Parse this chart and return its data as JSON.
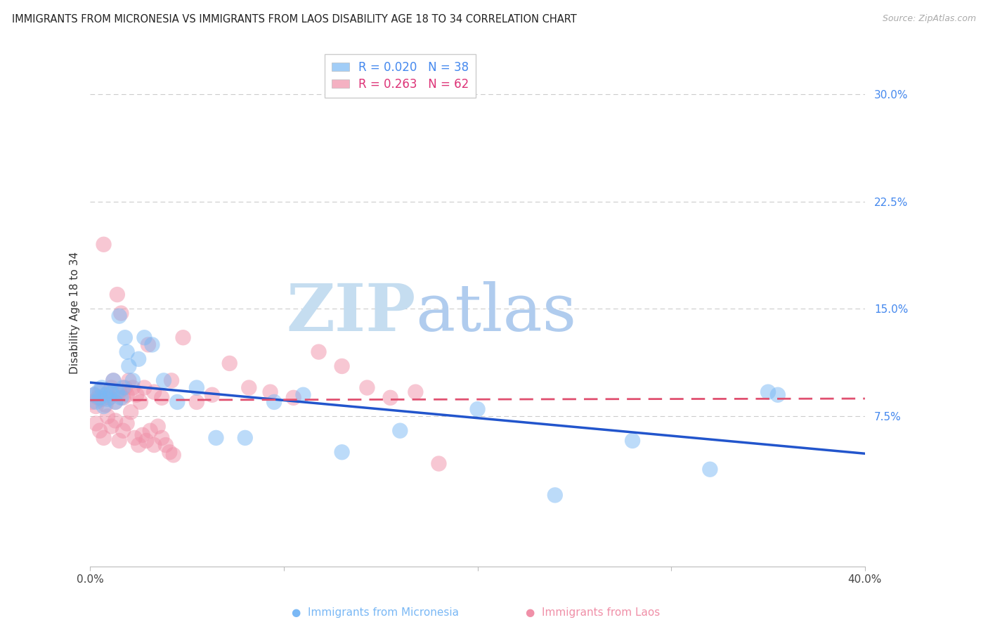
{
  "title": "IMMIGRANTS FROM MICRONESIA VS IMMIGRANTS FROM LAOS DISABILITY AGE 18 TO 34 CORRELATION CHART",
  "source": "Source: ZipAtlas.com",
  "ylabel": "Disability Age 18 to 34",
  "xlim": [
    0.0,
    0.4
  ],
  "ylim": [
    -0.03,
    0.325
  ],
  "yticks": [
    0.075,
    0.15,
    0.225,
    0.3
  ],
  "ytick_labels": [
    "7.5%",
    "15.0%",
    "22.5%",
    "30.0%"
  ],
  "xticks": [
    0.0,
    0.1,
    0.2,
    0.3,
    0.4
  ],
  "xtick_labels": [
    "0.0%",
    "",
    "",
    "",
    "40.0%"
  ],
  "legend_R_mic": "0.020",
  "legend_N_mic": "38",
  "legend_R_laos": "0.263",
  "legend_N_laos": "62",
  "legend_label_mic": "Immigrants from Micronesia",
  "legend_label_laos": "Immigrants from Laos",
  "blue_color": "#7ab8f5",
  "pink_color": "#f090a8",
  "blue_line_color": "#2255cc",
  "pink_line_color": "#e05070",
  "watermark_zip": "ZIP",
  "watermark_atlas": "atlas",
  "watermark_color_zip": "#c8dff0",
  "watermark_color_atlas": "#b8d8f0",
  "title_fontsize": 10.5,
  "axis_label_fontsize": 11,
  "tick_fontsize": 11,
  "legend_fontsize": 12,
  "mic_x": [
    0.002,
    0.003,
    0.004,
    0.005,
    0.006,
    0.007,
    0.008,
    0.009,
    0.01,
    0.011,
    0.012,
    0.013,
    0.014,
    0.015,
    0.016,
    0.017,
    0.018,
    0.019,
    0.02,
    0.022,
    0.025,
    0.028,
    0.032,
    0.038,
    0.045,
    0.055,
    0.065,
    0.08,
    0.095,
    0.11,
    0.13,
    0.16,
    0.2,
    0.24,
    0.28,
    0.32,
    0.35,
    0.355
  ],
  "mic_y": [
    0.09,
    0.085,
    0.092,
    0.088,
    0.095,
    0.082,
    0.09,
    0.087,
    0.093,
    0.091,
    0.1,
    0.085,
    0.092,
    0.145,
    0.088,
    0.095,
    0.13,
    0.12,
    0.11,
    0.1,
    0.115,
    0.13,
    0.125,
    0.1,
    0.085,
    0.095,
    0.06,
    0.06,
    0.085,
    0.09,
    0.05,
    0.065,
    0.08,
    0.02,
    0.058,
    0.038,
    0.092,
    0.09
  ],
  "laos_x": [
    0.001,
    0.002,
    0.003,
    0.004,
    0.005,
    0.006,
    0.007,
    0.008,
    0.009,
    0.01,
    0.011,
    0.012,
    0.013,
    0.014,
    0.015,
    0.016,
    0.017,
    0.018,
    0.019,
    0.02,
    0.022,
    0.024,
    0.026,
    0.028,
    0.03,
    0.033,
    0.037,
    0.042,
    0.048,
    0.055,
    0.063,
    0.072,
    0.082,
    0.093,
    0.105,
    0.118,
    0.13,
    0.143,
    0.155,
    0.168,
    0.18,
    0.003,
    0.005,
    0.007,
    0.009,
    0.011,
    0.013,
    0.015,
    0.017,
    0.019,
    0.021,
    0.023,
    0.025,
    0.027,
    0.029,
    0.031,
    0.033,
    0.035,
    0.037,
    0.039,
    0.041,
    0.043
  ],
  "laos_y": [
    0.085,
    0.09,
    0.082,
    0.088,
    0.092,
    0.087,
    0.195,
    0.083,
    0.091,
    0.088,
    0.095,
    0.1,
    0.085,
    0.16,
    0.092,
    0.147,
    0.088,
    0.095,
    0.09,
    0.1,
    0.095,
    0.09,
    0.085,
    0.095,
    0.125,
    0.092,
    0.088,
    0.1,
    0.13,
    0.085,
    0.09,
    0.112,
    0.095,
    0.092,
    0.088,
    0.12,
    0.11,
    0.095,
    0.088,
    0.092,
    0.042,
    0.07,
    0.065,
    0.06,
    0.075,
    0.068,
    0.072,
    0.058,
    0.065,
    0.07,
    0.078,
    0.06,
    0.055,
    0.062,
    0.058,
    0.065,
    0.055,
    0.068,
    0.06,
    0.055,
    0.05,
    0.048
  ]
}
